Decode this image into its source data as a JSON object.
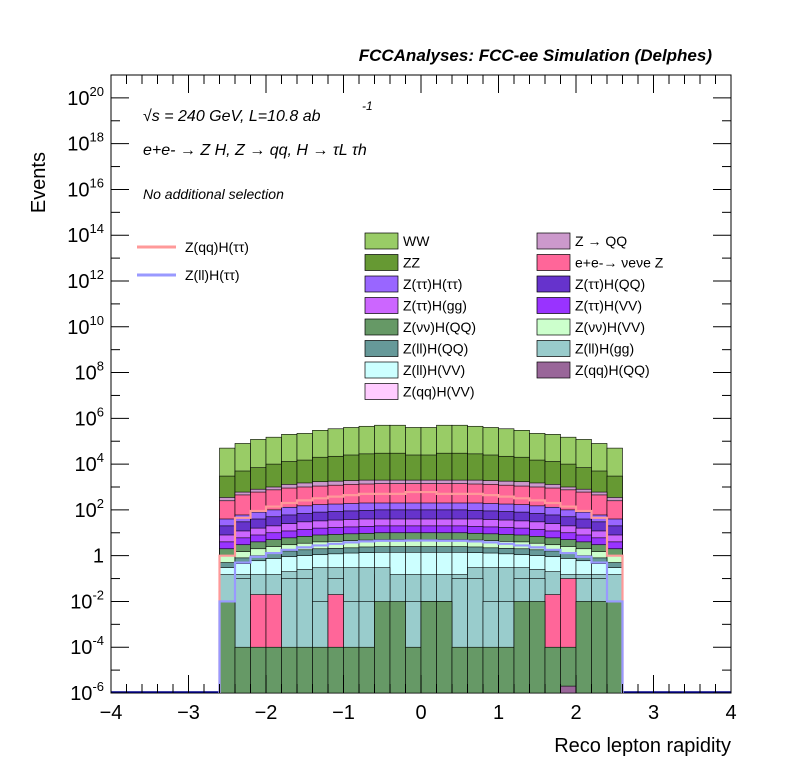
{
  "header": {
    "title": "FCCAnalyses: FCC-ee Simulation (Delphes)"
  },
  "annotations": {
    "energy": "√s = 240 GeV, L=10.8 ab",
    "lumi_exp": "-1",
    "process": "e+e- → Z H, Z → qq, H → τL τh",
    "selection": "No additional selection"
  },
  "colors": {
    "WW": "#99cc66",
    "ZZ": "#669933",
    "Z_QQ": "#cc99cc",
    "ee_nunuZ": "#ff6699",
    "tautau_tautau": "#9966ff",
    "tautau_QQ": "#6633cc",
    "tautau_gg": "#cc66ff",
    "tautau_VV": "#9933ff",
    "nunu_QQ": "#669966",
    "nunu_VV": "#ccffcc",
    "ll_QQ": "#669999",
    "ll_gg": "#99cccc",
    "ll_VV": "#ccffff",
    "qq_QQ": "#996699",
    "qq_VV": "#ffccff",
    "signal_qq": "#ff9999",
    "signal_ll": "#9999ff"
  },
  "chart_data": {
    "type": "bar",
    "xlabel": "Reco lepton rapidity",
    "ylabel": "Events",
    "xlim": [
      -4,
      4
    ],
    "ylim": [
      1e-06,
      1e+21
    ],
    "yscale": "log",
    "x_ticks": [
      "−4",
      "−3",
      "−2",
      "−1",
      "0",
      "1",
      "2",
      "3",
      "4"
    ],
    "y_ticks": [
      {
        "base": "10",
        "exp": "20"
      },
      {
        "base": "10",
        "exp": "18"
      },
      {
        "base": "10",
        "exp": "16"
      },
      {
        "base": "10",
        "exp": "14"
      },
      {
        "base": "10",
        "exp": "12"
      },
      {
        "base": "10",
        "exp": "10"
      },
      {
        "base": "10",
        "exp": "8"
      },
      {
        "base": "10",
        "exp": "6"
      },
      {
        "base": "10",
        "exp": "4"
      },
      {
        "base": "10",
        "exp": "2"
      },
      {
        "base": "1",
        "exp": ""
      },
      {
        "base": "10",
        "exp": "-2"
      },
      {
        "base": "10",
        "exp": "-4"
      },
      {
        "base": "10",
        "exp": "-6"
      }
    ],
    "bin_edges_range": [
      -2.6,
      2.6
    ],
    "n_bins": 26,
    "stack_totals": [
      50000.0,
      80000.0,
      120000.0,
      150000.0,
      200000.0,
      220000.0,
      300000.0,
      350000.0,
      400000.0,
      450000.0,
      500000.0,
      500000.0,
      400000.0,
      400000.0,
      500000.0,
      500000.0,
      450000.0,
      400000.0,
      350000.0,
      300000.0,
      220000.0,
      200000.0,
      150000.0,
      120000.0,
      80000.0,
      50000.0
    ],
    "ZZ_top": [
      3000.0,
      5000.0,
      7000.0,
      10000.0,
      13000.0,
      15000.0,
      20000.0,
      22000.0,
      25000.0,
      28000.0,
      30000.0,
      30000.0,
      25000.0,
      25000.0,
      30000.0,
      30000.0,
      28000.0,
      25000.0,
      22000.0,
      20000.0,
      15000.0,
      13000.0,
      10000.0,
      7000.0,
      5000.0,
      3000.0
    ],
    "stack_levels": [
      {
        "key": "Z_QQ",
        "values": [
          350,
          600,
          800,
          1000,
          1300,
          1500,
          1700,
          1800,
          1900,
          2000,
          2000,
          2000,
          2000,
          2000,
          2000,
          2000,
          2000,
          1900,
          1800,
          1700,
          1500,
          1300,
          1000,
          800,
          600,
          350
        ]
      },
      {
        "key": "ee_nunuZ",
        "values": [
          250,
          450,
          600,
          750,
          900,
          1000,
          1100,
          1200,
          1300,
          1350,
          1400,
          1400,
          1400,
          1400,
          1400,
          1400,
          1350,
          1300,
          1200,
          1100,
          1000,
          900,
          750,
          600,
          450,
          250
        ]
      },
      {
        "key": "tautau_tautau",
        "values": [
          40,
          60,
          80,
          100,
          130,
          150,
          170,
          180,
          190,
          200,
          200,
          200,
          200,
          200,
          200,
          200,
          200,
          190,
          180,
          170,
          150,
          130,
          100,
          80,
          60,
          40
        ]
      },
      {
        "key": "tautau_QQ",
        "values": [
          20,
          30,
          40,
          50,
          60,
          70,
          80,
          85,
          90,
          95,
          100,
          100,
          100,
          100,
          100,
          100,
          95,
          90,
          85,
          80,
          70,
          60,
          50,
          40,
          30,
          20
        ]
      },
      {
        "key": "tautau_gg",
        "values": [
          8,
          12,
          16,
          20,
          25,
          30,
          33,
          36,
          38,
          40,
          40,
          40,
          40,
          40,
          40,
          40,
          40,
          38,
          36,
          33,
          30,
          25,
          20,
          16,
          12,
          8
        ]
      },
      {
        "key": "tautau_VV",
        "values": [
          4,
          6,
          8,
          10,
          12,
          14,
          16,
          17,
          18,
          19,
          20,
          20,
          20,
          20,
          20,
          20,
          19,
          18,
          17,
          16,
          14,
          12,
          10,
          8,
          6,
          4
        ]
      },
      {
        "key": "nunu_QQ",
        "values": [
          2,
          3,
          4,
          5,
          6,
          7,
          8,
          8.5,
          9,
          9.5,
          10,
          10,
          10,
          10,
          10,
          10,
          9.5,
          9,
          8.5,
          8,
          7,
          6,
          5,
          4,
          3,
          2
        ]
      },
      {
        "key": "nunu_VV",
        "values": [
          1,
          1.5,
          2,
          2.5,
          3,
          3.5,
          4,
          4.2,
          4.5,
          4.8,
          5,
          5,
          5,
          5,
          5,
          5,
          4.8,
          4.5,
          4.2,
          4,
          3.5,
          3,
          2.5,
          2,
          1.5,
          1
        ]
      },
      {
        "key": "ll_QQ",
        "values": [
          0.5,
          0.8,
          1,
          1.3,
          1.6,
          1.8,
          2,
          2.1,
          2.2,
          2.4,
          2.5,
          2.5,
          2.5,
          2.5,
          2.5,
          2.5,
          2.4,
          2.2,
          2.1,
          2,
          1.8,
          1.6,
          1.3,
          1,
          0.8,
          0.5
        ]
      },
      {
        "key": "ll_VV",
        "values": [
          0.3,
          0.45,
          0.6,
          0.75,
          0.9,
          1,
          1.1,
          1.2,
          1.3,
          1.35,
          1.4,
          1.4,
          1.4,
          1.4,
          1.4,
          1.4,
          1.35,
          1.3,
          1.2,
          1.1,
          1,
          0.9,
          0.75,
          0.6,
          0.45,
          0.3
        ]
      },
      {
        "key": "ll_gg",
        "values": [
          0.15,
          0.15,
          0.15,
          0.15,
          0.2,
          0.25,
          0.3,
          0.3,
          0.3,
          0.3,
          0.15,
          0.15,
          0.15,
          0.15,
          0.15,
          0.15,
          0.3,
          0.3,
          0.3,
          0.3,
          0.25,
          0.2,
          0.15,
          0.15,
          0.15,
          0.15
        ]
      }
    ],
    "pink_bars": [
      0,
      0,
      0.02,
      0.02,
      0,
      0,
      0,
      0.02,
      0,
      0,
      0,
      0,
      0,
      0,
      0,
      0,
      0,
      0,
      0,
      0,
      0,
      0.02,
      0.1,
      0,
      0,
      0
    ],
    "green_bars": [
      0.01,
      0.0001,
      0.0001,
      0.0001,
      0.0001,
      0.0001,
      0.0001,
      0.0001,
      0.0001,
      0.0001,
      0.01,
      0.01,
      0.0001,
      0.01,
      0.01,
      0.0001,
      0.0001,
      0.0001,
      0.0001,
      0.01,
      0.01,
      0.0001,
      0.0001,
      0.01,
      0.01,
      0.01
    ],
    "ll_gg_bars": [
      0,
      0.1,
      0.01,
      0.01,
      0.1,
      0.1,
      0.01,
      0.1,
      0.01,
      0.01,
      0.3,
      0.0001,
      0.01,
      0.01,
      0.01,
      0.1,
      0.1,
      0.01,
      0.01,
      0.1,
      0.1,
      0.01,
      0.01,
      0.1,
      0.1,
      0.01
    ],
    "qq_QQ_bars": [
      0,
      0,
      0,
      0,
      0,
      0,
      0,
      0,
      0,
      0,
      0,
      0,
      0,
      0,
      0,
      0,
      0,
      0,
      0,
      0,
      0,
      0,
      2e-06,
      0,
      0,
      0
    ],
    "signal_qq": [
      1,
      45,
      90,
      140,
      200,
      260,
      320,
      380,
      440,
      500,
      500,
      500,
      600,
      600,
      500,
      500,
      500,
      440,
      380,
      320,
      260,
      200,
      140,
      90,
      45,
      1
    ],
    "signal_ll": [
      0.01,
      0.5,
      0.9,
      1.3,
      1.8,
      2.3,
      2.8,
      3.3,
      3.8,
      4.2,
      4.5,
      4.5,
      4.6,
      4.6,
      4.5,
      4.5,
      4.2,
      3.8,
      3.3,
      2.8,
      2.3,
      1.8,
      1.3,
      0.9,
      0.5,
      0.01
    ],
    "legend_left": [
      {
        "label": "Z(qq)H(ττ)",
        "key": "signal_qq"
      },
      {
        "label": "Z(ll)H(ττ)",
        "key": "signal_ll"
      }
    ],
    "legend_col1": [
      {
        "label": "WW",
        "key": "WW"
      },
      {
        "label": "ZZ",
        "key": "ZZ"
      },
      {
        "label": "Z(ττ)H(ττ)",
        "key": "tautau_tautau"
      },
      {
        "label": "Z(ττ)H(gg)",
        "key": "tautau_gg"
      },
      {
        "label": "Z(νν)H(QQ)",
        "key": "nunu_QQ"
      },
      {
        "label": "Z(ll)H(QQ)",
        "key": "ll_QQ"
      },
      {
        "label": "Z(ll)H(VV)",
        "key": "ll_VV"
      },
      {
        "label": "Z(qq)H(VV)",
        "key": "qq_VV"
      }
    ],
    "legend_col2": [
      {
        "label": "Z → QQ",
        "key": "Z_QQ"
      },
      {
        "label": "e+e-→ νeνe Z",
        "key": "ee_nunuZ"
      },
      {
        "label": "Z(ττ)H(QQ)",
        "key": "tautau_QQ"
      },
      {
        "label": "Z(ττ)H(VV)",
        "key": "tautau_VV"
      },
      {
        "label": "Z(νν)H(VV)",
        "key": "nunu_VV"
      },
      {
        "label": "Z(ll)H(gg)",
        "key": "ll_gg"
      },
      {
        "label": "Z(qq)H(QQ)",
        "key": "qq_QQ"
      }
    ]
  }
}
